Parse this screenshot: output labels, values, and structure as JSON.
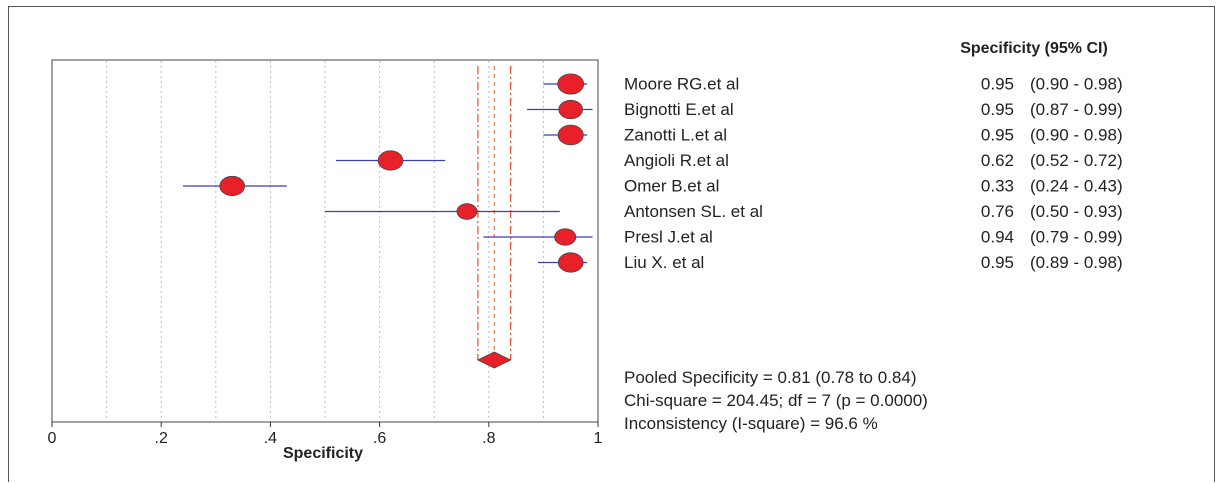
{
  "chart_data": {
    "type": "forest",
    "xlabel": "Specificity",
    "xlim": [
      0,
      1
    ],
    "xticks": [
      {
        "value": 0,
        "label": "0"
      },
      {
        "value": 0.2,
        "label": ".2"
      },
      {
        "value": 0.4,
        "label": ".4"
      },
      {
        "value": 0.6,
        "label": ".6"
      },
      {
        "value": 0.8,
        "label": ".8"
      },
      {
        "value": 1,
        "label": "1"
      }
    ],
    "grid_x": [
      0.1,
      0.2,
      0.3,
      0.4,
      0.5,
      0.6,
      0.7,
      0.8,
      0.9
    ],
    "column_header": "Specificity (95% CI)",
    "studies": [
      {
        "name": "Moore RG.et al",
        "estimate": 0.95,
        "lower": 0.9,
        "upper": 0.98,
        "estimate_label": "0.95",
        "ci_label": "(0.90 - 0.98)",
        "weight": 1.0
      },
      {
        "name": "Bignotti E.et al",
        "estimate": 0.95,
        "lower": 0.87,
        "upper": 0.99,
        "estimate_label": "0.95",
        "ci_label": "(0.87 - 0.99)",
        "weight": 0.85
      },
      {
        "name": "Zanotti L.et al",
        "estimate": 0.95,
        "lower": 0.9,
        "upper": 0.98,
        "estimate_label": "0.95",
        "ci_label": "(0.90 - 0.98)",
        "weight": 0.95
      },
      {
        "name": "Angioli R.et al",
        "estimate": 0.62,
        "lower": 0.52,
        "upper": 0.72,
        "estimate_label": "0.62",
        "ci_label": "(0.52 - 0.72)",
        "weight": 0.92
      },
      {
        "name": "Omer B.et al",
        "estimate": 0.33,
        "lower": 0.24,
        "upper": 0.43,
        "estimate_label": "0.33",
        "ci_label": "(0.24 - 0.43)",
        "weight": 0.92
      },
      {
        "name": "Antonsen SL. et al",
        "estimate": 0.76,
        "lower": 0.5,
        "upper": 0.93,
        "estimate_label": "0.76",
        "ci_label": "(0.50 - 0.93)",
        "weight": 0.6
      },
      {
        "name": "Presl J.et al",
        "estimate": 0.94,
        "lower": 0.79,
        "upper": 0.99,
        "estimate_label": "0.94",
        "ci_label": "(0.79 - 0.99)",
        "weight": 0.68
      },
      {
        "name": "Liu X. et al",
        "estimate": 0.95,
        "lower": 0.89,
        "upper": 0.98,
        "estimate_label": "0.95",
        "ci_label": "(0.89 - 0.98)",
        "weight": 0.92
      }
    ],
    "pooled": {
      "estimate": 0.81,
      "lower": 0.78,
      "upper": 0.84
    },
    "stats": [
      "Pooled Specificity = 0.81 (0.78 to 0.84)",
      "Chi-square = 204.45; df =  7 (p = 0.0000)",
      "Inconsistency (I-square) = 96.6 %"
    ],
    "colors": {
      "marker_fill": "#e8202a",
      "marker_stroke": "#444444",
      "ci_line": "#3b3fb0",
      "pooled_line": "#e85a3a",
      "grid": "#bdbdbd",
      "axis": "#333333"
    }
  }
}
